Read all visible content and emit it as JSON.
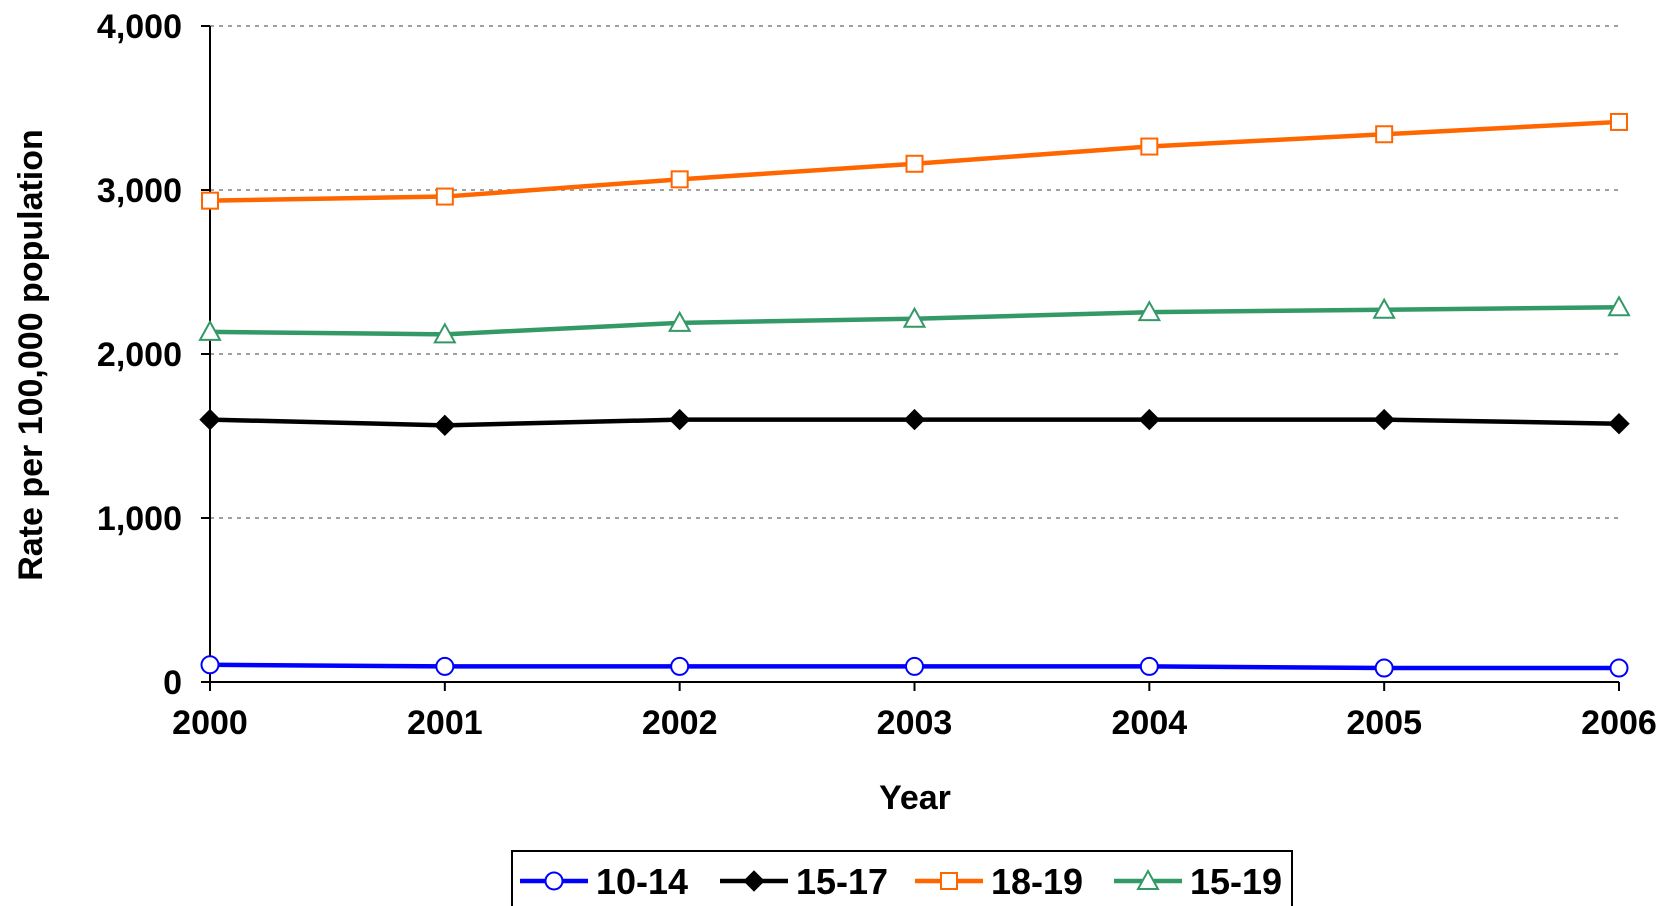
{
  "chart_data": {
    "type": "line",
    "title": "",
    "xlabel": "Year",
    "ylabel": "Rate per 100,000 population",
    "x": [
      "2000",
      "2001",
      "2002",
      "2003",
      "2004",
      "2005",
      "2006"
    ],
    "ylim": [
      0,
      4000
    ],
    "yticks": [
      0,
      1000,
      2000,
      3000,
      4000
    ],
    "ytick_labels": [
      "0",
      "1,000",
      "2,000",
      "3,000",
      "4,000"
    ],
    "grid": "horizontal dotted",
    "legend_position": "bottom",
    "series": [
      {
        "name": "10-14",
        "color": "#0000ff",
        "marker": "circle-open",
        "values": [
          105,
          95,
          95,
          95,
          95,
          85,
          85
        ]
      },
      {
        "name": "15-17",
        "color": "#000000",
        "marker": "diamond-filled",
        "values": [
          1600,
          1565,
          1600,
          1600,
          1600,
          1600,
          1575
        ]
      },
      {
        "name": "18-19",
        "color": "#ff6600",
        "marker": "square-open",
        "values": [
          2935,
          2960,
          3065,
          3160,
          3265,
          3340,
          3415
        ]
      },
      {
        "name": "15-19",
        "color": "#339966",
        "marker": "triangle-open",
        "values": [
          2135,
          2120,
          2190,
          2215,
          2255,
          2270,
          2285
        ]
      }
    ]
  }
}
